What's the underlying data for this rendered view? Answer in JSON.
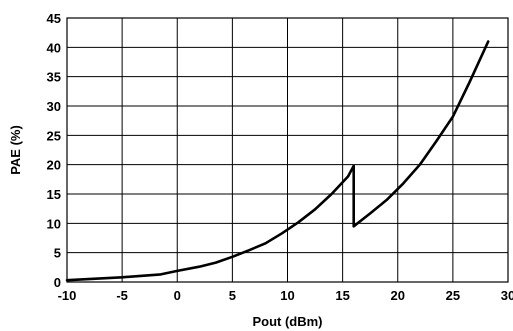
{
  "chart_data": {
    "type": "line",
    "title": "",
    "xlabel": "Pout (dBm)",
    "ylabel": "PAE (%)",
    "xlim": [
      -10,
      30
    ],
    "ylim": [
      0,
      45
    ],
    "x_ticks": [
      -10,
      -5,
      0,
      5,
      10,
      15,
      20,
      25,
      30
    ],
    "y_ticks": [
      0,
      5,
      10,
      15,
      20,
      25,
      30,
      35,
      40,
      45
    ],
    "grid": true,
    "legend": "none",
    "series": [
      {
        "x": [
          -10,
          -5,
          -1.5,
          0,
          2,
          3.5,
          5,
          6.5,
          8,
          9.5,
          11,
          12.5,
          14,
          15.5,
          16,
          16,
          17.5,
          19,
          20.5,
          22,
          23.5,
          25,
          26.5,
          28.2
        ],
        "y": [
          0.3,
          0.8,
          1.3,
          1.9,
          2.6,
          3.3,
          4.3,
          5.4,
          6.6,
          8.3,
          10.2,
          12.4,
          15.0,
          18.0,
          19.8,
          9.5,
          11.7,
          14.0,
          16.8,
          20.0,
          24.0,
          28.2,
          34.0,
          41.0
        ]
      }
    ]
  }
}
